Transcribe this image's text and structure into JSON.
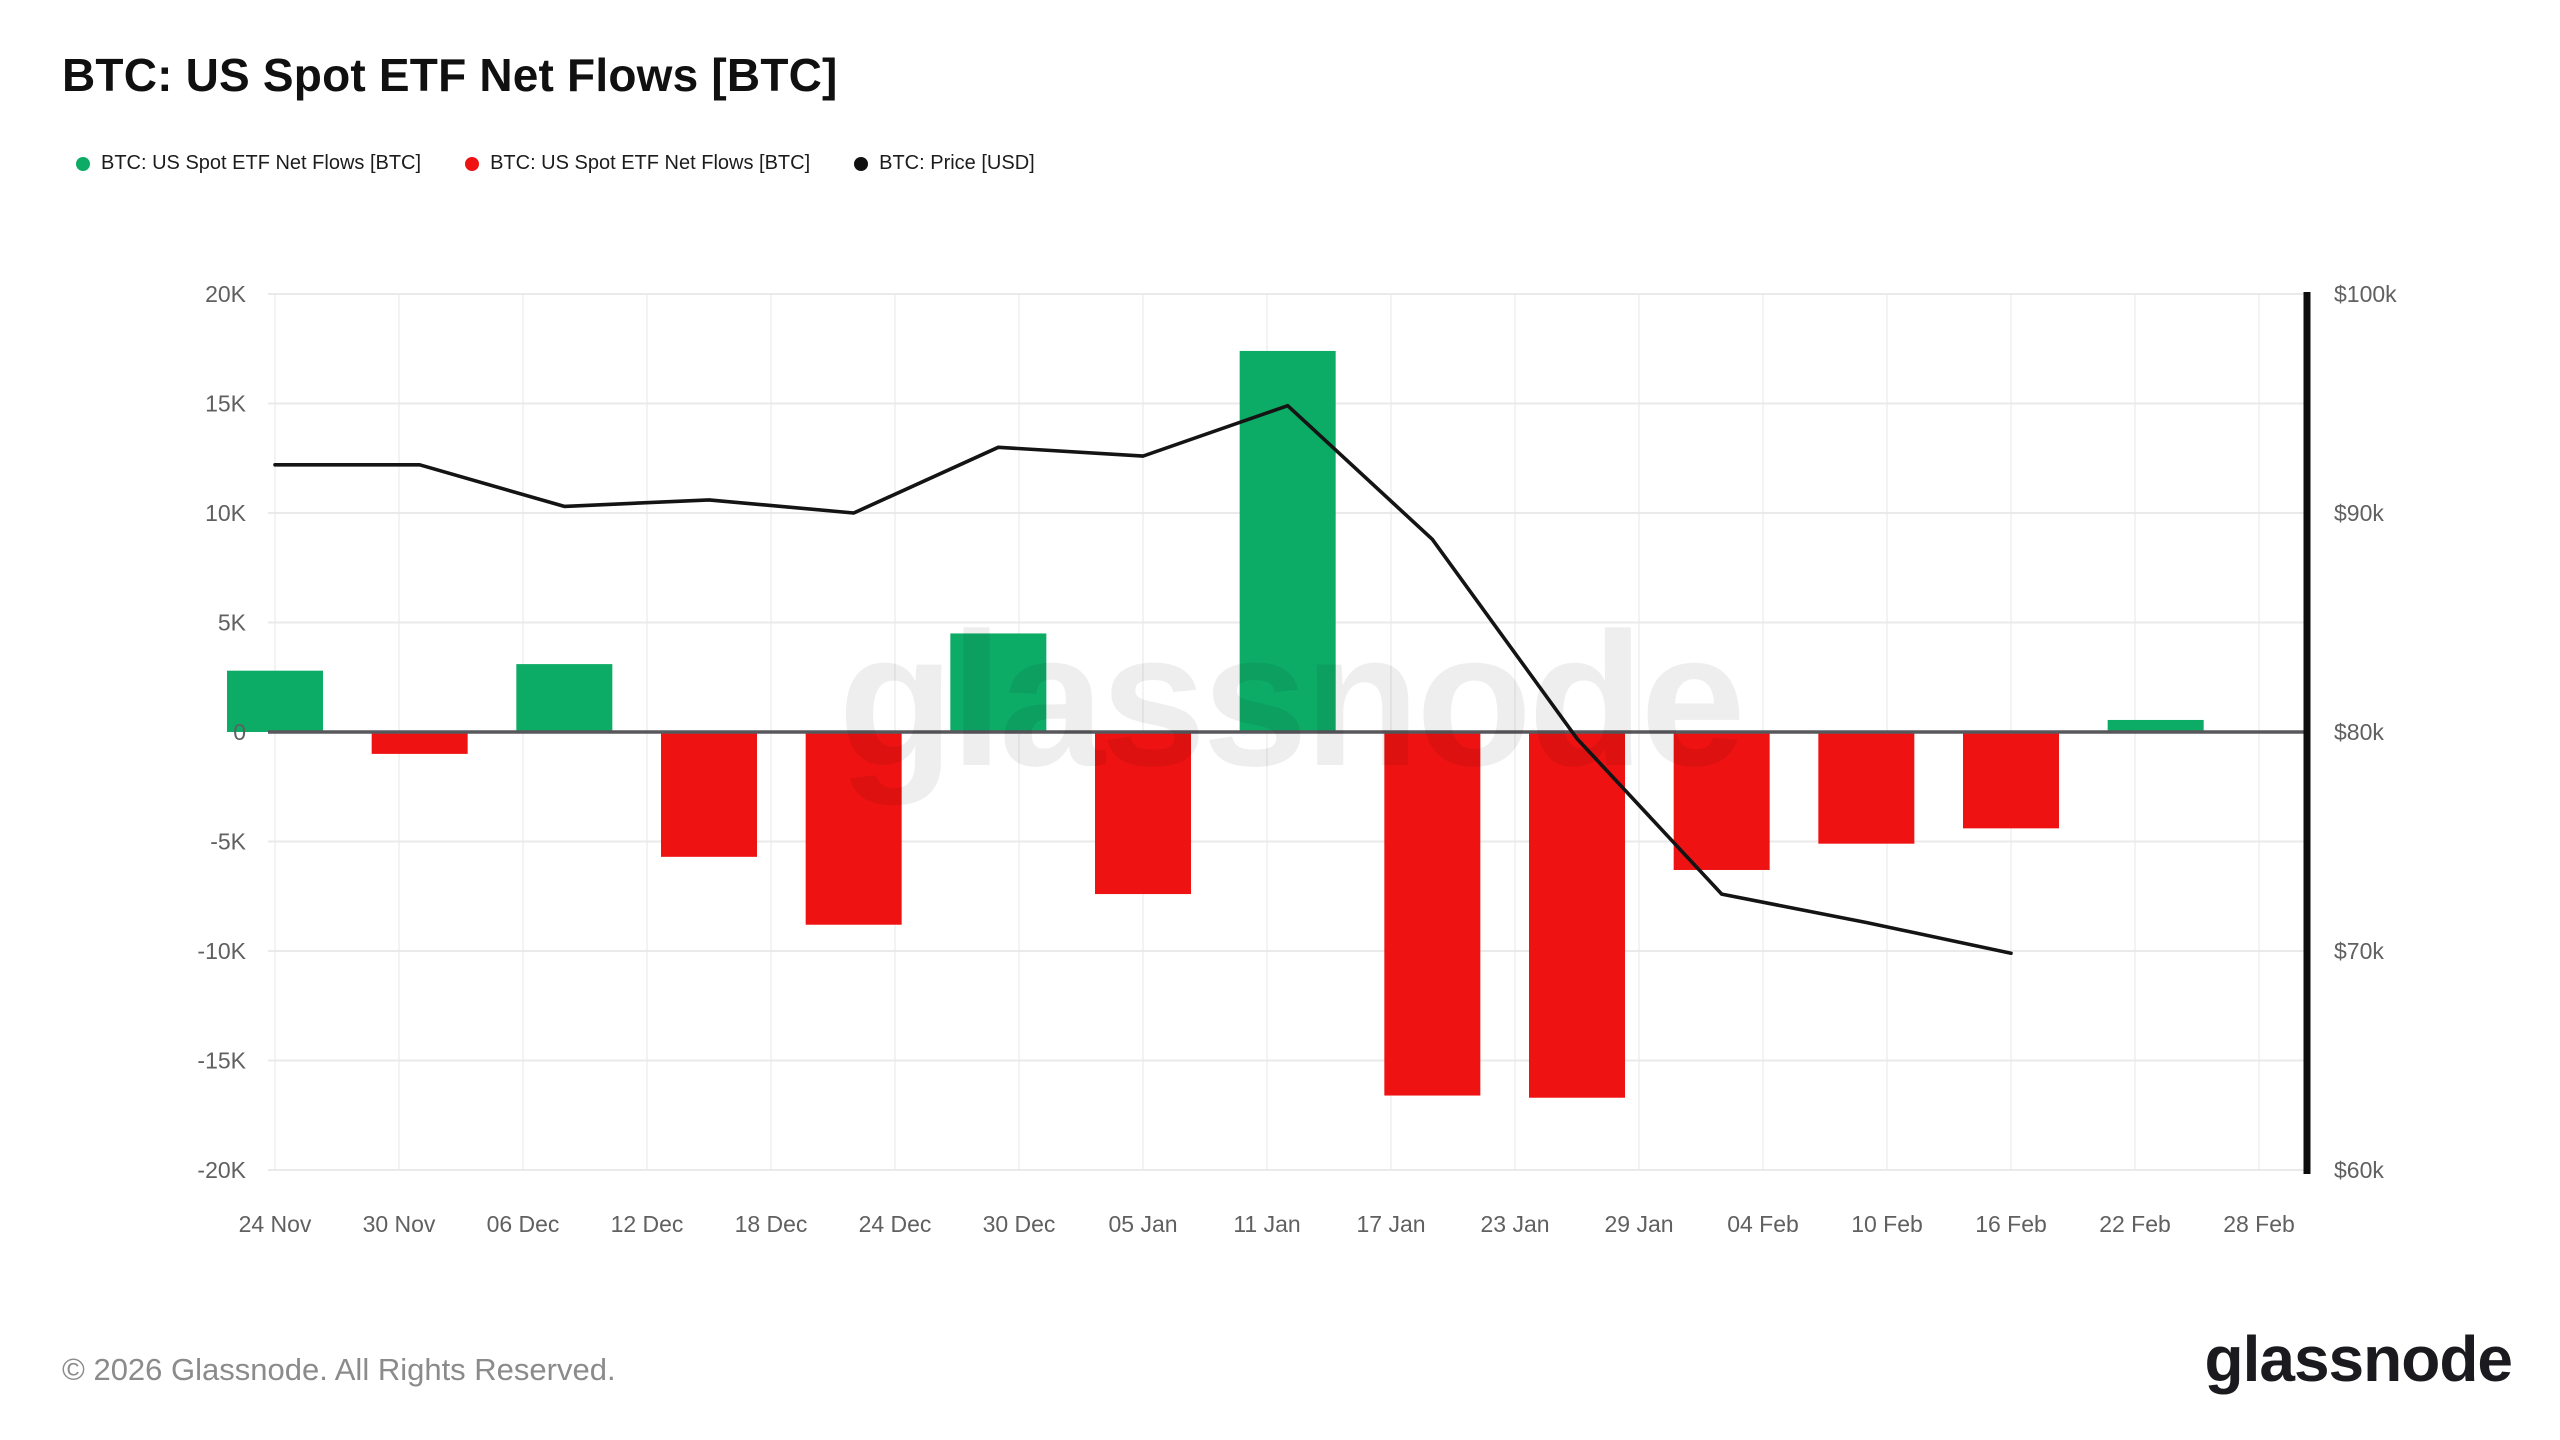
{
  "page": {
    "title": "BTC: US Spot ETF Net Flows [BTC]",
    "footer": "© 2026 Glassnode. All Rights Reserved.",
    "logo_text": "glassnode",
    "watermark": "glassnode"
  },
  "legend": {
    "items": [
      {
        "label": "BTC: US Spot ETF Net Flows [BTC]",
        "color": "#0cab66"
      },
      {
        "label": "BTC: US Spot ETF Net Flows [BTC]",
        "color": "#ee1212"
      },
      {
        "label": "BTC: Price [USD]",
        "color": "#111111"
      }
    ]
  },
  "colors": {
    "flow_positive": "#0cab66",
    "flow_negative": "#ee1212",
    "price_line": "#141414",
    "zero_line": "#58585c",
    "gridline": "#eaeaea",
    "vertical_gridline": "#f3f3f3",
    "axis_label": "#606060",
    "right_axis_line": "#0d0d0d",
    "watermark": "rgba(20,20,20,0.07)"
  },
  "chart_data": {
    "type": "bar",
    "title": "BTC: US Spot ETF Net Flows [BTC]",
    "x_tick_labels": [
      "24 Nov",
      "30 Nov",
      "06 Dec",
      "12 Dec",
      "18 Dec",
      "24 Dec",
      "30 Dec",
      "05 Jan",
      "11 Jan",
      "17 Jan",
      "23 Jan",
      "29 Jan",
      "04 Feb",
      "10 Feb",
      "16 Feb",
      "22 Feb",
      "28 Feb"
    ],
    "tick_interval_days": 6,
    "point_interval_days": 7,
    "axis_span_days": 96,
    "y_left": {
      "ticks": [
        "20K",
        "15K",
        "10K",
        "5K",
        "0",
        "-5K",
        "-10K",
        "-15K",
        "-20K"
      ],
      "max": 20000,
      "min": -20000,
      "label_unit": "BTC"
    },
    "y_right": {
      "ticks": [
        "$100k",
        "$90k",
        "$80k",
        "$70k",
        "$60k"
      ],
      "max": 100000,
      "min": 60000,
      "label_unit": "USD"
    },
    "series": [
      {
        "name": "BTC: US Spot ETF Net Flows [BTC]",
        "type": "bar",
        "dates": [
          "24 Nov",
          "01 Dec",
          "08 Dec",
          "15 Dec",
          "22 Dec",
          "29 Dec",
          "05 Jan",
          "12 Jan",
          "19 Jan",
          "26 Jan",
          "02 Feb",
          "09 Feb",
          "16 Feb",
          "23 Feb"
        ],
        "values": [
          2800,
          -1000,
          3100,
          -5700,
          -8800,
          4500,
          -7400,
          17400,
          -16600,
          -16700,
          -6300,
          -5100,
          -4400,
          550
        ]
      },
      {
        "name": "BTC: Price [USD]",
        "type": "line",
        "dates": [
          "24 Nov",
          "01 Dec",
          "08 Dec",
          "15 Dec",
          "22 Dec",
          "29 Dec",
          "05 Jan",
          "12 Jan",
          "19 Jan",
          "26 Jan",
          "02 Feb",
          "09 Feb",
          "16 Feb"
        ],
        "values": [
          92200,
          92200,
          90300,
          90600,
          90000,
          93000,
          92600,
          94900,
          88800,
          79700,
          72600,
          71300,
          69900
        ]
      }
    ]
  }
}
